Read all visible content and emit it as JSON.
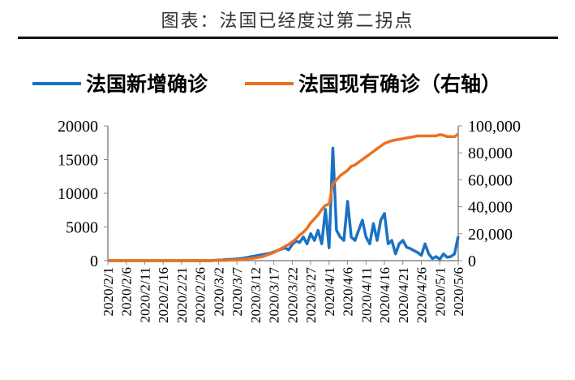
{
  "chart_data": {
    "type": "line",
    "title": "图表：法国已经度过第二拐点",
    "x_start": "2020/2/1",
    "x_tick_labels": [
      "2020/2/1",
      "2020/2/6",
      "2020/2/11",
      "2020/2/16",
      "2020/2/21",
      "2020/2/26",
      "2020/3/2",
      "2020/3/7",
      "2020/3/12",
      "2020/3/17",
      "2020/3/22",
      "2020/3/27",
      "2020/4/1",
      "2020/4/6",
      "2020/4/11",
      "2020/4/16",
      "2020/4/21",
      "2020/4/26",
      "2020/5/1",
      "2020/5/6"
    ],
    "y_left": {
      "range": [
        0,
        20000
      ],
      "ticks": [
        "20000",
        "15000",
        "10000",
        "5000",
        "0"
      ]
    },
    "y_right": {
      "range": [
        0,
        100000
      ],
      "ticks": [
        "100,000",
        "80,000",
        "60,000",
        "40,000",
        "20,000",
        "0"
      ]
    },
    "grid": false,
    "legend_position": "top",
    "series": [
      {
        "name": "法国新增确诊",
        "axis": "left",
        "color": "#1a72c4",
        "values": [
          0,
          0,
          0,
          0,
          0,
          0,
          0,
          0,
          0,
          0,
          0,
          0,
          0,
          0,
          0,
          0,
          0,
          0,
          0,
          0,
          0,
          0,
          0,
          0,
          0,
          0,
          0,
          0,
          0,
          50,
          80,
          100,
          150,
          180,
          200,
          250,
          300,
          400,
          500,
          600,
          700,
          800,
          900,
          1000,
          1100,
          1300,
          1500,
          1700,
          1900,
          1600,
          2400,
          2900,
          2700,
          3500,
          2500,
          4000,
          3000,
          4500,
          2500,
          7600,
          1900,
          16700,
          4500,
          3500,
          3000,
          8800,
          3500,
          3000,
          4500,
          6000,
          3500,
          2500,
          5500,
          3000,
          6000,
          7000,
          2500,
          3000,
          1000,
          2500,
          3000,
          2000,
          1800,
          1500,
          1200,
          800,
          2500,
          1000,
          300,
          600,
          200,
          1000,
          500,
          600,
          1000,
          3600
        ]
      },
      {
        "name": "法国现有确诊（右轴）",
        "axis": "right",
        "color": "#ed7020",
        "values": [
          0,
          0,
          0,
          0,
          0,
          0,
          0,
          0,
          0,
          0,
          0,
          0,
          0,
          0,
          0,
          0,
          0,
          0,
          0,
          0,
          0,
          0,
          0,
          0,
          0,
          0,
          0,
          0,
          0,
          100,
          150,
          200,
          250,
          350,
          450,
          600,
          800,
          1000,
          1300,
          1600,
          2000,
          2500,
          3000,
          4000,
          5000,
          6000,
          7500,
          9000,
          10500,
          12000,
          14000,
          16000,
          19000,
          21000,
          24000,
          28000,
          31000,
          34000,
          38000,
          41000,
          42000,
          57000,
          60000,
          63000,
          65000,
          67000,
          70000,
          71000,
          73000,
          75000,
          77000,
          79000,
          81000,
          83000,
          85000,
          87000,
          88000,
          89000,
          89500,
          90000,
          90500,
          91000,
          91500,
          92000,
          92500,
          92500,
          92500,
          92500,
          92500,
          92500,
          93500,
          93000,
          92000,
          92000,
          92000,
          94000
        ]
      }
    ]
  }
}
